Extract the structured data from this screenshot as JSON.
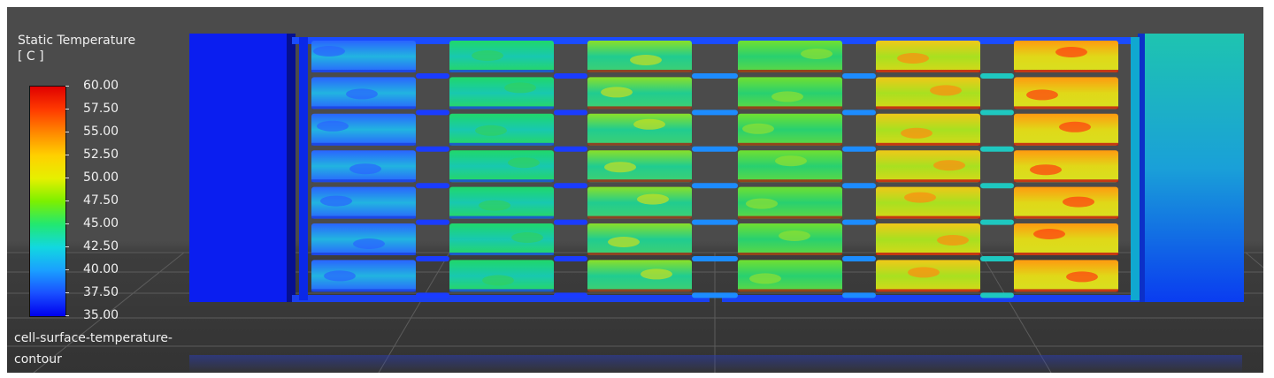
{
  "legend": {
    "title_line1": "Static Temperature",
    "title_line2": "[ C ]",
    "ticks": [
      "60.00",
      "57.50",
      "55.00",
      "52.50",
      "50.00",
      "47.50",
      "45.00",
      "42.50",
      "40.00",
      "37.50",
      "35.00"
    ],
    "caption_line1": "cell-surface-temperature-",
    "caption_line2": "contour"
  },
  "colors": {
    "background": "#4b4b4b",
    "floor": "#333333",
    "inlet_plenum": "#0a1ef0",
    "outlet_plenum": "#20c8b4",
    "pipes": "#1a5aff"
  },
  "icons": {
    "module_array": "battery-module-array-icon",
    "inlet": "inlet-plenum-icon",
    "outlet": "outlet-plenum-icon"
  }
}
